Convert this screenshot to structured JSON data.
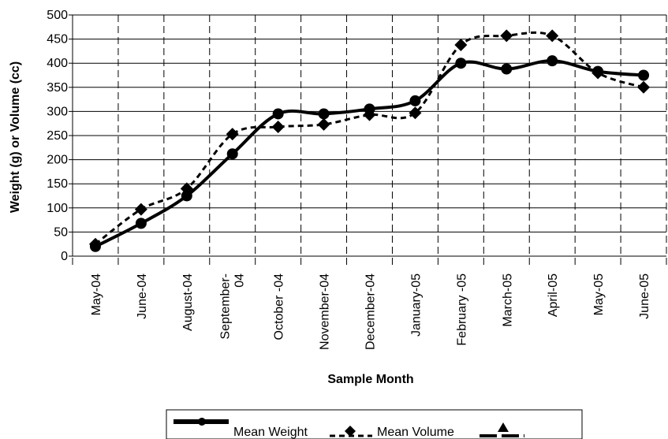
{
  "chart_data": {
    "type": "line",
    "title": "",
    "xlabel": "Sample Month",
    "ylabel": "Weight (g) or Volume (cc)",
    "ylim": [
      0,
      500
    ],
    "yticks": [
      0,
      50,
      100,
      150,
      200,
      250,
      300,
      350,
      400,
      450,
      500
    ],
    "grid": "dashed vertical, solid horizontal",
    "categories": [
      "May-04",
      "June-04",
      "August-04",
      "September-04",
      "October -04",
      "November-04",
      "December-04",
      "January-05",
      "February -05",
      "March-05",
      "April-05",
      "May-05",
      "June-05"
    ],
    "category_lines": [
      [
        "May-04"
      ],
      [
        "June-04"
      ],
      [
        "August-04"
      ],
      [
        "September-",
        "04"
      ],
      [
        "October -04"
      ],
      [
        "November-04"
      ],
      [
        "December-04"
      ],
      [
        "January-05"
      ],
      [
        "February -05"
      ],
      [
        "March-05"
      ],
      [
        "April-05"
      ],
      [
        "May-05"
      ],
      [
        "June-05"
      ]
    ],
    "series": [
      {
        "name": "Mean Weight",
        "style": "solid",
        "marker": "circle",
        "color": "#000000",
        "values": [
          20,
          68,
          125,
          212,
          295,
          295,
          305,
          322,
          400,
          388,
          405,
          383,
          375
        ]
      },
      {
        "name": "Mean Volume",
        "style": "dashed",
        "marker": "diamond",
        "color": "#000000",
        "values": [
          25,
          97,
          140,
          253,
          268,
          273,
          293,
          297,
          438,
          457,
          457,
          380,
          350
        ]
      }
    ],
    "legend": {
      "placement": "bottom",
      "entries": [
        "Mean Weight",
        "Mean Volume",
        ""
      ]
    }
  }
}
